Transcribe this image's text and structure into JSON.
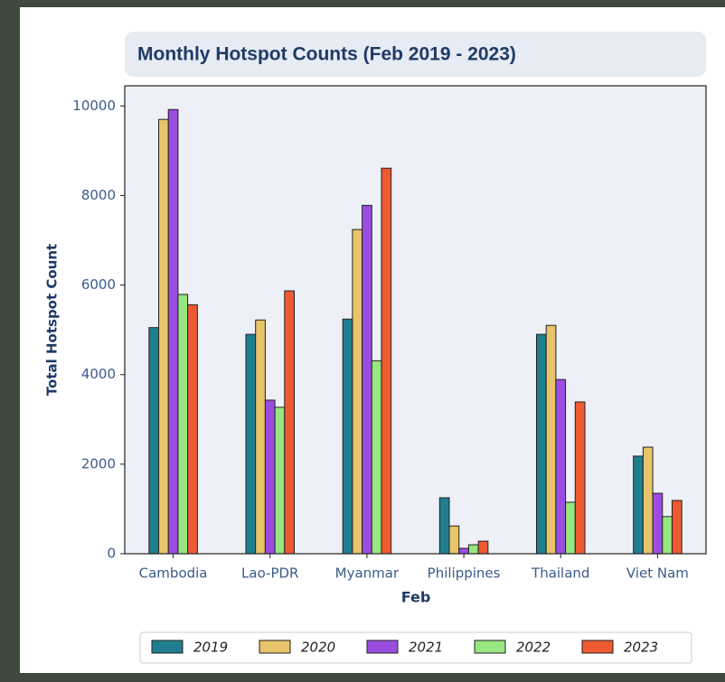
{
  "chart_data": {
    "type": "bar",
    "title": "Monthly Hotspot Counts (Feb 2019 - 2023)",
    "xlabel": "Feb",
    "ylabel": "Total Hotspot Count",
    "categories": [
      "Cambodia",
      "Lao-PDR",
      "Myanmar",
      "Philippines",
      "Thailand",
      "Viet Nam"
    ],
    "series": [
      {
        "name": "2019",
        "color": "#1f7f8f",
        "values": [
          5050,
          4900,
          5240,
          1250,
          4900,
          2180
        ]
      },
      {
        "name": "2020",
        "color": "#e8c46a",
        "values": [
          9700,
          5220,
          7240,
          620,
          5100,
          2380
        ]
      },
      {
        "name": "2021",
        "color": "#9b4de0",
        "values": [
          9920,
          3430,
          7780,
          120,
          3890,
          1350
        ]
      },
      {
        "name": "2022",
        "color": "#98e67f",
        "values": [
          5790,
          3270,
          4310,
          200,
          1150,
          830
        ]
      },
      {
        "name": "2023",
        "color": "#ee5a32",
        "values": [
          5560,
          5870,
          8610,
          280,
          3390,
          1190
        ]
      }
    ],
    "ylim": [
      0,
      10450
    ],
    "yticks": [
      0,
      2000,
      4000,
      6000,
      8000,
      10000
    ],
    "legend": "bottom"
  }
}
